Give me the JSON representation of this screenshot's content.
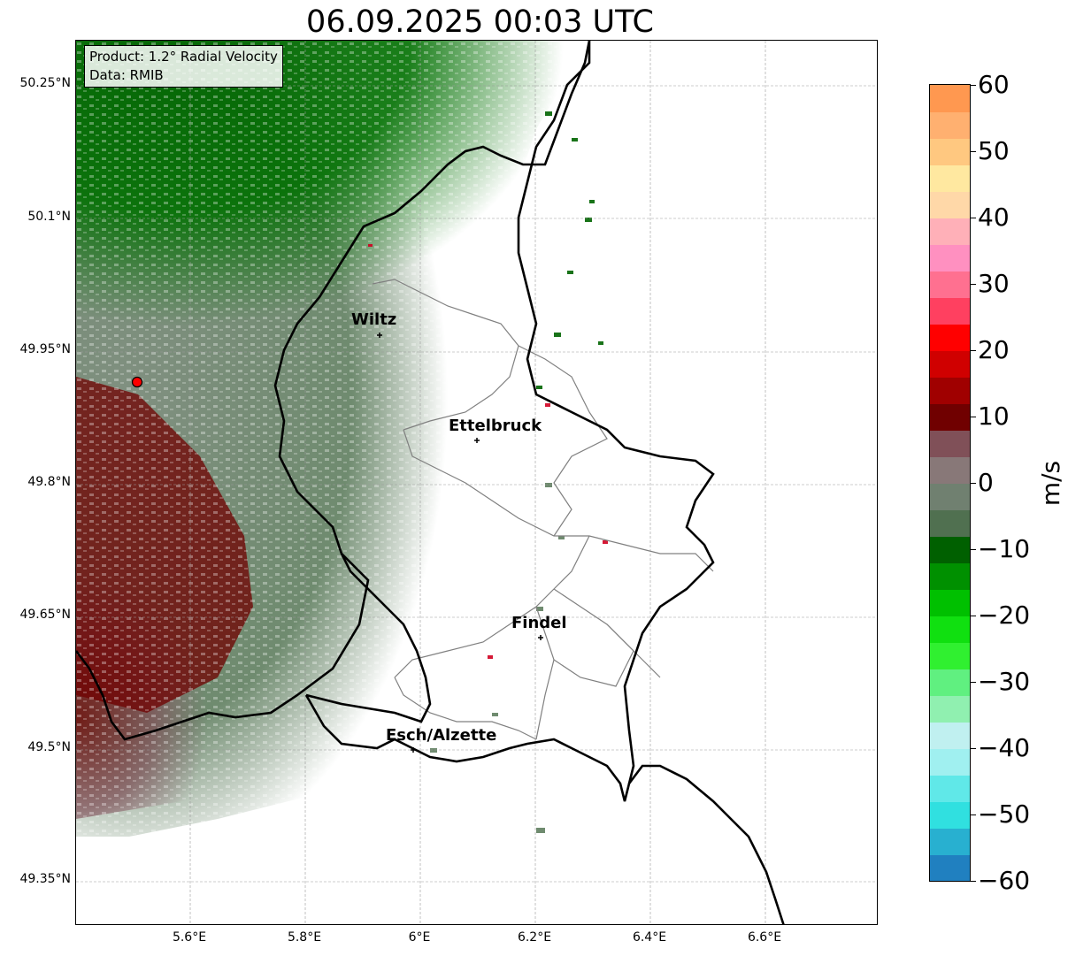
{
  "title": "06.09.2025 00:03 UTC",
  "info": {
    "product": "Product: 1.2° Radial Velocity",
    "data": "Data: RMIB"
  },
  "lat_ticks": [
    "50.25°N",
    "50.1°N",
    "49.95°N",
    "49.8°N",
    "49.65°N",
    "49.5°N",
    "49.35°N"
  ],
  "lon_ticks": [
    "5.6°E",
    "5.8°E",
    "6°E",
    "6.2°E",
    "6.4°E",
    "6.6°E"
  ],
  "colorbar": {
    "unit": "m/s",
    "ticks": [
      "60",
      "50",
      "40",
      "30",
      "20",
      "10",
      "0",
      "−10",
      "−20",
      "−30",
      "−40",
      "−50",
      "−60"
    ],
    "min": -60,
    "max": 60,
    "colors": [
      "#2080c0",
      "#28b0d0",
      "#30e0e0",
      "#60e8e8",
      "#a0f0f0",
      "#c0f0f0",
      "#90f0b0",
      "#60f080",
      "#30f030",
      "#10e010",
      "#00c000",
      "#009000",
      "#006000",
      "#507050",
      "#708070",
      "#887878",
      "#805058",
      "#700000",
      "#a00000",
      "#d00000",
      "#ff0000",
      "#ff4060",
      "#ff7090",
      "#ff90c0",
      "#ffb0b8",
      "#ffd8a8",
      "#ffe8a0",
      "#ffc880",
      "#ffb070",
      "#ff9850"
    ]
  },
  "cities": [
    {
      "name": "Wiltz"
    },
    {
      "name": "Ettelbruck"
    },
    {
      "name": "Findel"
    },
    {
      "name": "Esch/Alzette"
    }
  ],
  "radar_site": {
    "marker_color": "#ff0000"
  }
}
